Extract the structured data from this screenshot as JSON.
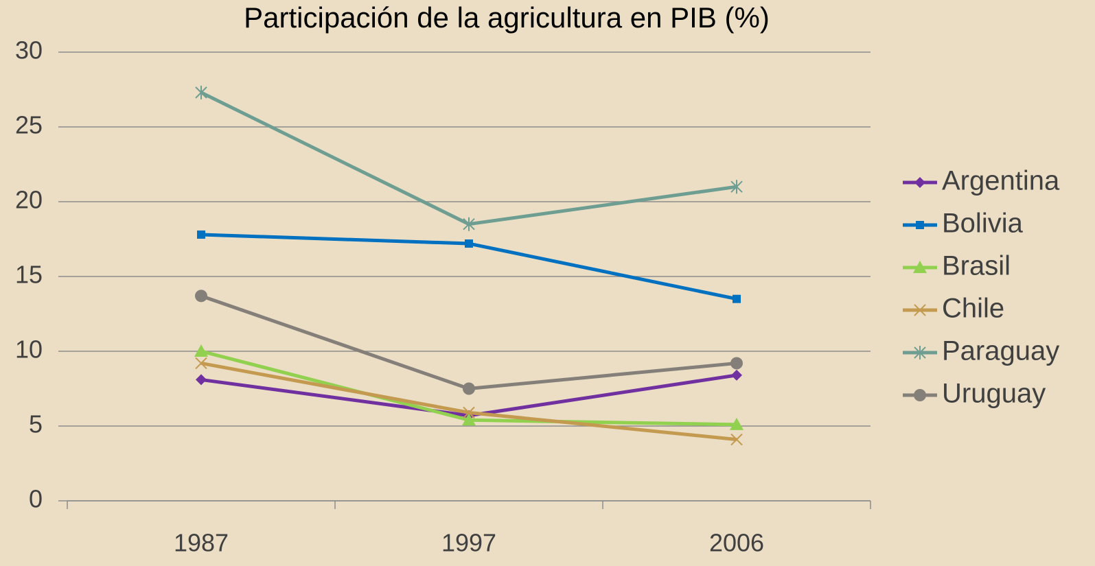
{
  "chart_data": {
    "type": "line",
    "title": "Participación de la agricultura en PIB (%)",
    "categories": [
      "1987",
      "1997",
      "2006"
    ],
    "series": [
      {
        "name": "Argentina",
        "color": "#7030a0",
        "marker": "diamond",
        "values": [
          8.1,
          5.7,
          8.4
        ]
      },
      {
        "name": "Bolivia",
        "color": "#0070c0",
        "marker": "square",
        "values": [
          17.8,
          17.2,
          13.5
        ]
      },
      {
        "name": "Brasil",
        "color": "#92d050",
        "marker": "triangle",
        "values": [
          10.0,
          5.4,
          5.1
        ]
      },
      {
        "name": "Chile",
        "color": "#c49a50",
        "marker": "x",
        "values": [
          9.2,
          5.9,
          4.1
        ]
      },
      {
        "name": "Paraguay",
        "color": "#6e9e92",
        "marker": "asterisk",
        "values": [
          27.3,
          18.5,
          21.0
        ]
      },
      {
        "name": "Uruguay",
        "color": "#857f7a",
        "marker": "circle",
        "values": [
          13.7,
          7.5,
          9.2
        ]
      }
    ],
    "ylim": [
      0,
      30
    ],
    "yticks": [
      0,
      5,
      10,
      15,
      20,
      25,
      30
    ],
    "grid": true,
    "legend": "right"
  }
}
